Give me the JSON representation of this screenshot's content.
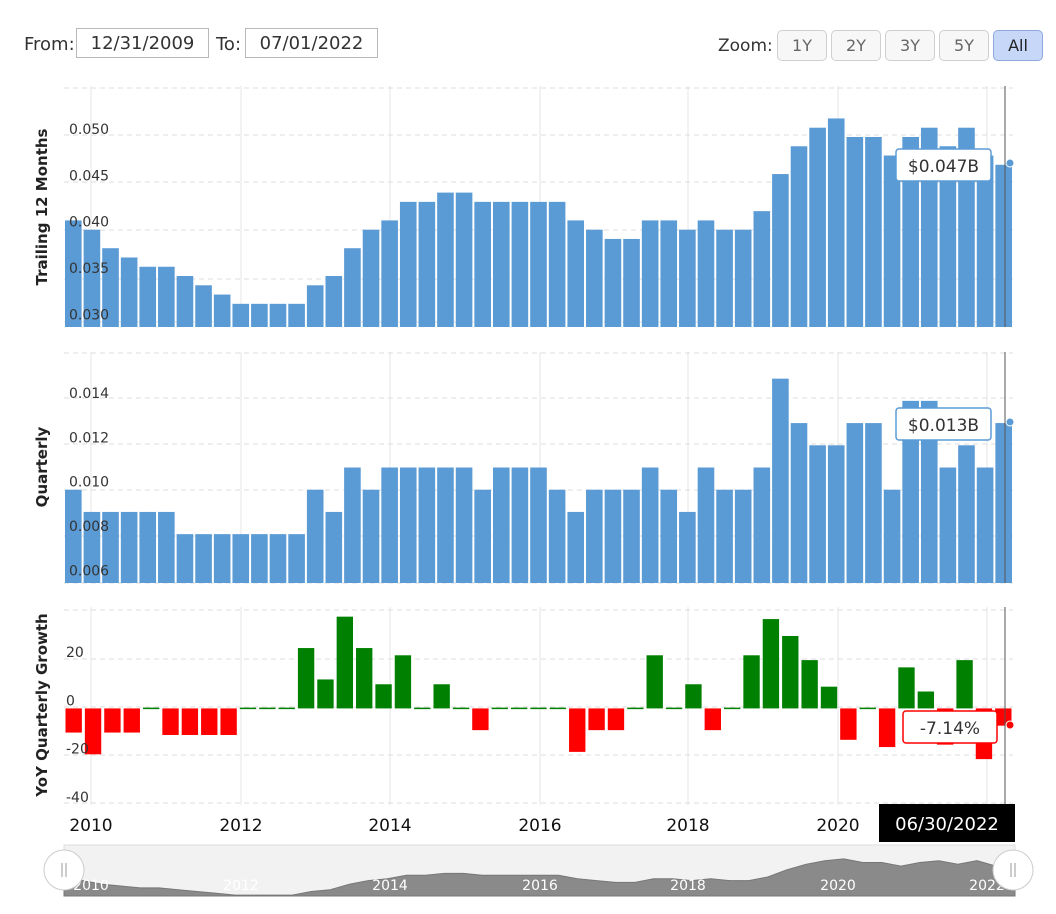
{
  "controls": {
    "from_label": "From:",
    "from_value": "12/31/2009",
    "to_label": "To:",
    "to_value": "07/01/2022",
    "zoom_label": "Zoom:",
    "zoom_buttons": [
      "1Y",
      "2Y",
      "3Y",
      "5Y",
      "All"
    ],
    "zoom_active": "All"
  },
  "colors": {
    "bar": "#5b9bd5",
    "positive": "#008000",
    "negative": "#ff0000",
    "navigator_fill": "#8a8a8a",
    "crosshair_label_bg": "#000000"
  },
  "crosshair_date": "06/30/2022",
  "navigator_labels": [
    "2010",
    "2012",
    "2014",
    "2016",
    "2018",
    "2020",
    "2022"
  ],
  "chart_data": [
    {
      "type": "bar",
      "ylabel": "Trailing 12 Months",
      "yticks": [
        "0.030",
        "0.035",
        "0.040",
        "0.045",
        "0.050"
      ],
      "ylim": [
        0.0295,
        0.0555
      ],
      "tooltip": "$0.047B",
      "values": [
        0.041,
        0.04,
        0.038,
        0.037,
        0.036,
        0.036,
        0.035,
        0.034,
        0.033,
        0.032,
        0.032,
        0.032,
        0.032,
        0.034,
        0.035,
        0.038,
        0.04,
        0.041,
        0.043,
        0.043,
        0.044,
        0.044,
        0.043,
        0.043,
        0.043,
        0.043,
        0.043,
        0.041,
        0.04,
        0.039,
        0.039,
        0.041,
        0.041,
        0.04,
        0.041,
        0.04,
        0.04,
        0.042,
        0.046,
        0.049,
        0.051,
        0.052,
        0.05,
        0.05,
        0.048,
        0.05,
        0.051,
        0.049,
        0.051,
        0.048,
        0.047
      ]
    },
    {
      "type": "bar",
      "ylabel": "Quarterly",
      "yticks": [
        "0.006",
        "0.008",
        "0.010",
        "0.012",
        "0.014"
      ],
      "ylim": [
        0.0058,
        0.0162
      ],
      "tooltip": "$0.013B",
      "values": [
        0.01,
        0.009,
        0.009,
        0.009,
        0.009,
        0.009,
        0.008,
        0.008,
        0.008,
        0.008,
        0.008,
        0.008,
        0.008,
        0.01,
        0.009,
        0.011,
        0.01,
        0.011,
        0.011,
        0.011,
        0.011,
        0.011,
        0.01,
        0.011,
        0.011,
        0.011,
        0.01,
        0.009,
        0.01,
        0.01,
        0.01,
        0.011,
        0.01,
        0.009,
        0.011,
        0.01,
        0.01,
        0.011,
        0.015,
        0.013,
        0.012,
        0.012,
        0.013,
        0.013,
        0.01,
        0.014,
        0.014,
        0.011,
        0.012,
        0.011,
        0.013
      ]
    },
    {
      "type": "bar",
      "ylabel": "YoY Quarterly Growth",
      "yticks": [
        "-40",
        "-20",
        "0",
        "20"
      ],
      "ylim": [
        -40,
        42
      ],
      "tooltip": "-7.14%",
      "values": [
        -10,
        -19,
        -10,
        -10,
        0,
        -11,
        -11,
        -11,
        -11,
        0,
        0,
        0,
        25,
        12,
        38,
        25,
        10,
        22,
        0,
        10,
        0,
        -9,
        0,
        0,
        0,
        0,
        -18,
        -9,
        -9,
        0,
        22,
        0,
        10,
        -9,
        0,
        22,
        37,
        30,
        20,
        9,
        -13,
        0,
        -16,
        17,
        7,
        -15,
        20,
        -21,
        -7.14
      ]
    }
  ],
  "x_axis_labels": [
    "2010",
    "2012",
    "2014",
    "2016",
    "2018",
    "2020"
  ]
}
